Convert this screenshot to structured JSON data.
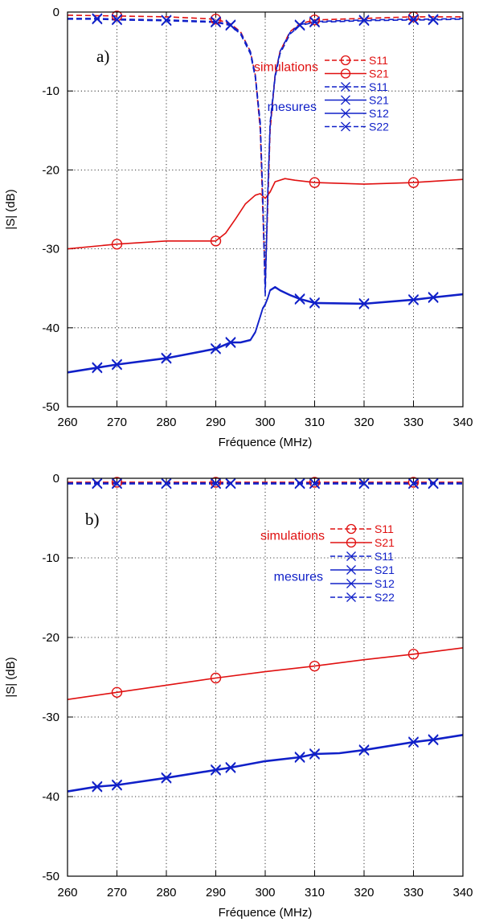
{
  "colors": {
    "simulation": "#e01010",
    "measurement": "#1020c8",
    "axis": "#000000",
    "grid": "#000000"
  },
  "chart_data": [
    {
      "type": "line",
      "panel": "a)",
      "title": "",
      "xlabel": "Fréquence (MHz)",
      "ylabel": "|S| (dB)",
      "xlim": [
        260,
        340
      ],
      "ylim": [
        -50,
        0
      ],
      "xticks": [
        260,
        270,
        280,
        290,
        300,
        310,
        320,
        330,
        340
      ],
      "yticks": [
        0,
        -10,
        -20,
        -30,
        -40,
        -50
      ],
      "grid": true,
      "grid_style": "dotted",
      "legend": {
        "position": "right",
        "groups": [
          {
            "label": "simulations",
            "color": "#e01010",
            "entries": [
              "S11",
              "S21"
            ]
          },
          {
            "label": "mesures",
            "color": "#1020c8",
            "entries": [
              "S11",
              "S21",
              "S12",
              "S22"
            ]
          }
        ]
      },
      "series": [
        {
          "name": "S11",
          "group": "simulations",
          "color": "#e01010",
          "dashed": true,
          "marker": "circle",
          "x": [
            260,
            270,
            280,
            290,
            293,
            295,
            297,
            298,
            299,
            299.5,
            300,
            300.5,
            301,
            302,
            303,
            305,
            307,
            310,
            320,
            330,
            340
          ],
          "y": [
            -0.4,
            -0.5,
            -0.6,
            -0.9,
            -1.5,
            -2.5,
            -5,
            -8,
            -15,
            -25,
            -34,
            -25,
            -15,
            -8,
            -5,
            -2.5,
            -1.5,
            -1,
            -0.8,
            -0.6,
            -0.6
          ],
          "marker_x": [
            270,
            290,
            310,
            330
          ]
        },
        {
          "name": "S21",
          "group": "simulations",
          "color": "#e01010",
          "dashed": false,
          "marker": "circle",
          "x": [
            260,
            270,
            280,
            290,
            292,
            294,
            296,
            298,
            299,
            300,
            301,
            302,
            304,
            306,
            310,
            320,
            330,
            340
          ],
          "y": [
            -30,
            -29.4,
            -29,
            -29,
            -28,
            -26.2,
            -24.3,
            -23.2,
            -23,
            -23.6,
            -22.8,
            -21.5,
            -21.1,
            -21.3,
            -21.6,
            -21.8,
            -21.6,
            -21.2
          ],
          "marker_x": [
            270,
            290,
            310,
            330
          ]
        },
        {
          "name": "S11",
          "group": "mesures",
          "color": "#1020c8",
          "dashed": true,
          "marker": "x",
          "x": [
            260,
            266,
            270,
            280,
            290,
            293,
            295,
            297,
            298,
            299,
            299.5,
            300,
            300.5,
            301,
            302,
            303,
            305,
            307,
            310,
            320,
            330,
            334,
            340
          ],
          "y": [
            -0.8,
            -0.8,
            -0.9,
            -1,
            -1.2,
            -1.6,
            -2.6,
            -5,
            -8,
            -14,
            -23,
            -35,
            -23,
            -14,
            -8,
            -5,
            -2.6,
            -1.6,
            -1.2,
            -1,
            -0.9,
            -0.9,
            -0.8
          ],
          "marker_x": [
            266,
            270,
            280,
            290,
            293,
            307,
            310,
            320,
            330,
            334
          ]
        },
        {
          "name": "S21",
          "group": "mesures",
          "color": "#1020c8",
          "dashed": false,
          "marker": "x",
          "x": [
            260,
            266,
            270,
            280,
            290,
            293,
            295,
            297,
            298,
            299,
            299.5,
            300,
            300.5,
            301,
            302,
            303,
            305,
            307,
            310,
            320,
            330,
            334,
            340
          ],
          "y": [
            -45.6,
            -45,
            -44.6,
            -43.8,
            -42.6,
            -41.8,
            -41.8,
            -41.5,
            -40.5,
            -38.5,
            -37.5,
            -37,
            -36.2,
            -35.2,
            -34.8,
            -35.2,
            -35.8,
            -36.3,
            -36.8,
            -36.9,
            -36.4,
            -36.1,
            -35.7
          ],
          "marker_x": [
            266,
            270,
            280,
            290,
            293,
            307,
            310,
            320,
            330,
            334
          ]
        },
        {
          "name": "S12",
          "group": "mesures",
          "color": "#1020c8",
          "dashed": false,
          "marker": "x",
          "x": [
            260,
            266,
            270,
            280,
            290,
            293,
            295,
            297,
            298,
            299,
            299.5,
            300,
            300.5,
            301,
            302,
            303,
            305,
            307,
            310,
            320,
            330,
            334,
            340
          ],
          "y": [
            -45.7,
            -45.1,
            -44.7,
            -43.9,
            -42.7,
            -41.9,
            -41.9,
            -41.6,
            -40.6,
            -38.6,
            -37.6,
            -37.1,
            -36.3,
            -35.3,
            -34.9,
            -35.3,
            -35.9,
            -36.4,
            -36.9,
            -37,
            -36.5,
            -36.2,
            -35.8
          ],
          "marker_x": [
            266,
            270,
            280,
            290,
            293,
            307,
            310,
            320,
            330,
            334
          ]
        },
        {
          "name": "S22",
          "group": "mesures",
          "color": "#1020c8",
          "dashed": true,
          "marker": "x",
          "x": [
            260,
            266,
            270,
            280,
            290,
            293,
            295,
            297,
            298,
            299,
            299.5,
            300,
            300.5,
            301,
            302,
            303,
            305,
            307,
            310,
            320,
            330,
            334,
            340
          ],
          "y": [
            -0.9,
            -0.9,
            -1,
            -1.1,
            -1.3,
            -1.7,
            -2.8,
            -5.3,
            -8.3,
            -14.5,
            -23.5,
            -36,
            -23.5,
            -14.5,
            -8.3,
            -5.3,
            -2.8,
            -1.7,
            -1.3,
            -1.1,
            -1,
            -1,
            -0.9
          ],
          "marker_x": [
            266,
            270,
            280,
            290,
            293,
            307,
            310,
            320,
            330,
            334
          ]
        }
      ]
    },
    {
      "type": "line",
      "panel": "b)",
      "title": "",
      "xlabel": "Fréquence (MHz)",
      "ylabel": "|S| (dB)",
      "xlim": [
        260,
        340
      ],
      "ylim": [
        -50,
        0
      ],
      "xticks": [
        260,
        270,
        280,
        290,
        300,
        310,
        320,
        330,
        340
      ],
      "yticks": [
        0,
        -10,
        -20,
        -30,
        -40,
        -50
      ],
      "grid": true,
      "grid_style": "dotted",
      "legend": {
        "position": "right",
        "groups": [
          {
            "label": "simulations",
            "color": "#e01010",
            "entries": [
              "S11",
              "S21"
            ]
          },
          {
            "label": "mesures",
            "color": "#1020c8",
            "entries": [
              "S11",
              "S21",
              "S12",
              "S22"
            ]
          }
        ]
      },
      "series": [
        {
          "name": "S11",
          "group": "simulations",
          "color": "#e01010",
          "dashed": true,
          "marker": "circle",
          "x": [
            260,
            270,
            280,
            290,
            300,
            310,
            320,
            330,
            340
          ],
          "y": [
            -0.5,
            -0.5,
            -0.5,
            -0.5,
            -0.5,
            -0.5,
            -0.5,
            -0.5,
            -0.5
          ],
          "marker_x": [
            270,
            290,
            310,
            330
          ]
        },
        {
          "name": "S21",
          "group": "simulations",
          "color": "#e01010",
          "dashed": false,
          "marker": "circle",
          "x": [
            260,
            270,
            280,
            290,
            300,
            310,
            320,
            330,
            340
          ],
          "y": [
            -27.8,
            -26.9,
            -26,
            -25.1,
            -24.3,
            -23.6,
            -22.8,
            -22.1,
            -21.3
          ],
          "marker_x": [
            270,
            290,
            310,
            330
          ]
        },
        {
          "name": "S11",
          "group": "mesures",
          "color": "#1020c8",
          "dashed": true,
          "marker": "x",
          "x": [
            260,
            266,
            270,
            280,
            290,
            293,
            307,
            310,
            320,
            330,
            334,
            340
          ],
          "y": [
            -0.6,
            -0.6,
            -0.6,
            -0.6,
            -0.6,
            -0.6,
            -0.6,
            -0.6,
            -0.6,
            -0.6,
            -0.6,
            -0.6
          ],
          "marker_x": [
            266,
            270,
            280,
            290,
            293,
            307,
            310,
            320,
            330,
            334
          ]
        },
        {
          "name": "S21",
          "group": "mesures",
          "color": "#1020c8",
          "dashed": false,
          "marker": "x",
          "x": [
            260,
            266,
            270,
            280,
            290,
            293,
            300,
            307,
            310,
            315,
            320,
            330,
            334,
            340
          ],
          "y": [
            -39.3,
            -38.7,
            -38.5,
            -37.6,
            -36.6,
            -36.3,
            -35.5,
            -35,
            -34.6,
            -34.5,
            -34.1,
            -33.1,
            -32.8,
            -32.2
          ],
          "marker_x": [
            266,
            270,
            280,
            290,
            293,
            307,
            310,
            320,
            330,
            334
          ]
        },
        {
          "name": "S12",
          "group": "mesures",
          "color": "#1020c8",
          "dashed": false,
          "marker": "x",
          "x": [
            260,
            266,
            270,
            280,
            290,
            293,
            300,
            307,
            310,
            315,
            320,
            330,
            334,
            340
          ],
          "y": [
            -39.4,
            -38.8,
            -38.6,
            -37.7,
            -36.7,
            -36.4,
            -35.6,
            -35.1,
            -34.7,
            -34.6,
            -34.2,
            -33.2,
            -32.9,
            -32.3
          ],
          "marker_x": [
            266,
            270,
            280,
            290,
            293,
            307,
            310,
            320,
            330,
            334
          ]
        },
        {
          "name": "S22",
          "group": "mesures",
          "color": "#1020c8",
          "dashed": true,
          "marker": "x",
          "x": [
            260,
            266,
            270,
            280,
            290,
            293,
            307,
            310,
            320,
            330,
            334,
            340
          ],
          "y": [
            -0.7,
            -0.7,
            -0.7,
            -0.7,
            -0.7,
            -0.7,
            -0.7,
            -0.7,
            -0.7,
            -0.7,
            -0.7,
            -0.7
          ],
          "marker_x": [
            266,
            270,
            280,
            290,
            293,
            307,
            310,
            320,
            330,
            334
          ]
        }
      ]
    }
  ]
}
